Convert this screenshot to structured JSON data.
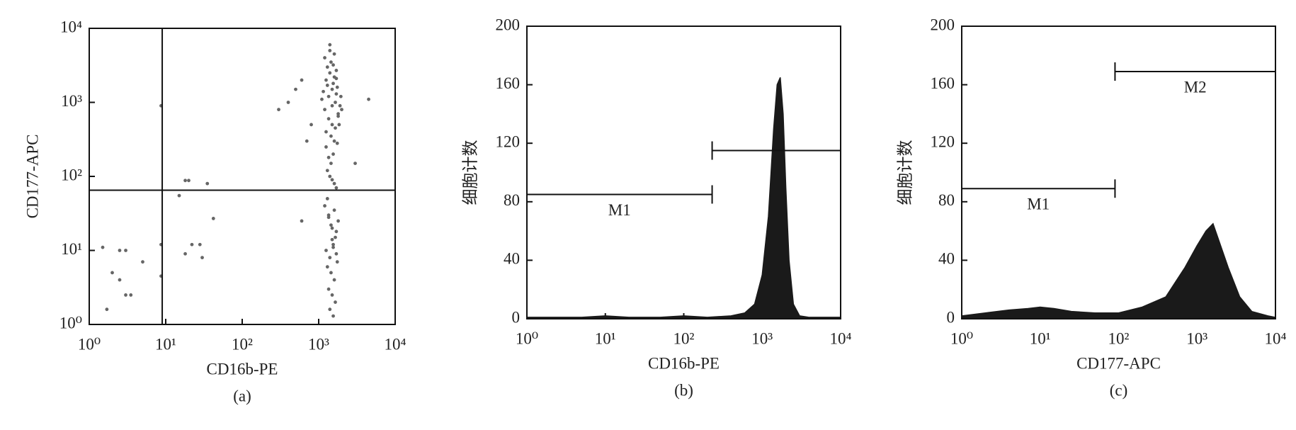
{
  "chart_data": [
    {
      "type": "scatter",
      "caption": "(a)",
      "x_label": "CD16b-PE",
      "y_label": "CD177-APC",
      "color": "#666666",
      "xlog": true,
      "ylog": true,
      "xlim": [
        1,
        10000
      ],
      "ylim": [
        1,
        10000
      ],
      "xticks": [
        {
          "value": 1,
          "label": "10⁰"
        },
        {
          "value": 10,
          "label": "10¹"
        },
        {
          "value": 100,
          "label": "10²"
        },
        {
          "value": 1000,
          "label": "10³"
        },
        {
          "value": 10000,
          "label": "10⁴"
        }
      ],
      "yticks": [
        {
          "value": 1,
          "label": "10⁰"
        },
        {
          "value": 10,
          "label": "10¹"
        },
        {
          "value": 100,
          "label": "10²"
        },
        {
          "value": 1000,
          "label": "10³"
        },
        {
          "value": 10000,
          "label": "10⁴"
        }
      ],
      "quadrant": {
        "x": 9,
        "y": 65
      },
      "x": [
        1200,
        1350,
        1500,
        1650,
        1800,
        1250,
        1400,
        1550,
        1700,
        1900,
        1300,
        1450,
        1600,
        1750,
        1100,
        1350,
        1500,
        1650,
        1800,
        2000,
        1200,
        1400,
        1550,
        1700,
        1250,
        1450,
        1600,
        1850,
        1150,
        1300,
        1500,
        1700,
        1950,
        1400,
        1600,
        1250,
        1550,
        1750,
        1350,
        1450,
        1300,
        1500,
        1700,
        1400,
        1600,
        1200,
        1350,
        1500,
        1650,
        1800,
        1250,
        1400,
        1550,
        1700,
        1300,
        1450,
        1600,
        1750,
        1350,
        1500,
        1650,
        1400,
        1550,
        1300,
        1600,
        1450,
        1700,
        1500,
        1350,
        1550,
        1.5,
        2.5,
        3,
        2,
        2.5,
        3,
        3.5,
        1.7,
        5,
        8.7,
        8.7,
        8.7,
        15,
        18,
        20,
        18,
        22,
        28,
        30,
        35,
        42,
        300,
        400,
        500,
        600,
        700,
        600,
        3000,
        4500,
        800
      ],
      "values": [
        800,
        1200,
        1500,
        1000,
        700,
        2000,
        2500,
        1800,
        1300,
        900,
        3000,
        3500,
        2200,
        1600,
        1100,
        600,
        500,
        450,
        650,
        800,
        4000,
        5000,
        3200,
        2700,
        400,
        350,
        300,
        500,
        1400,
        1700,
        900,
        2100,
        1200,
        6000,
        4500,
        250,
        200,
        280,
        180,
        150,
        120,
        90,
        70,
        100,
        80,
        40,
        30,
        20,
        15,
        25,
        10,
        8,
        12,
        18,
        6,
        5,
        4,
        7,
        3,
        2.5,
        2,
        1.6,
        1.3,
        50,
        35,
        22,
        9,
        14,
        28,
        11,
        11,
        10,
        10,
        5,
        4,
        2.5,
        2.5,
        1.6,
        7,
        900,
        12,
        4.5,
        55,
        88,
        88,
        9,
        12,
        12,
        8,
        80,
        27,
        800,
        1000,
        1500,
        2000,
        300,
        25,
        150,
        1100,
        500
      ]
    },
    {
      "type": "histogram",
      "caption": "(b)",
      "x_label": "CD16b-PE",
      "y_label": "细胞计数",
      "color": "#1a1a1a",
      "xlog": true,
      "xlim": [
        1,
        10000
      ],
      "ylim": [
        0,
        200
      ],
      "xticks": [
        {
          "value": 1,
          "label": "10⁰"
        },
        {
          "value": 10,
          "label": "10¹"
        },
        {
          "value": 100,
          "label": "10²"
        },
        {
          "value": 1000,
          "label": "10³"
        },
        {
          "value": 10000,
          "label": "10⁴"
        }
      ],
      "yticks": [
        0,
        40,
        80,
        120,
        160,
        200
      ],
      "markers": [
        {
          "label": "M1",
          "x": [
            1,
            230
          ],
          "y": 85
        },
        {
          "x": [
            230,
            10000
          ],
          "y": 115
        }
      ],
      "x": [
        1,
        2,
        5,
        10,
        20,
        50,
        100,
        200,
        400,
        600,
        800,
        1000,
        1200,
        1400,
        1550,
        1700,
        1850,
        2000,
        2200,
        2500,
        3000,
        4000,
        6000,
        10000
      ],
      "values": [
        1,
        1,
        1,
        2,
        1,
        1,
        2,
        1,
        2,
        4,
        10,
        30,
        70,
        130,
        160,
        165,
        140,
        90,
        40,
        10,
        2,
        1,
        1,
        1
      ]
    },
    {
      "type": "histogram",
      "caption": "(c)",
      "x_label": "CD177-APC",
      "y_label": "细胞计数",
      "color": "#1a1a1a",
      "xlog": true,
      "xlim": [
        1,
        10000
      ],
      "ylim": [
        0,
        200
      ],
      "xticks": [
        {
          "value": 1,
          "label": "10⁰"
        },
        {
          "value": 10,
          "label": "10¹"
        },
        {
          "value": 100,
          "label": "10²"
        },
        {
          "value": 1000,
          "label": "10³"
        },
        {
          "value": 10000,
          "label": "10⁴"
        }
      ],
      "yticks": [
        0,
        40,
        80,
        120,
        160,
        200
      ],
      "markers": [
        {
          "label": "M1",
          "x": [
            1,
            90
          ],
          "y": 89
        },
        {
          "label": "M2",
          "x": [
            90,
            10000
          ],
          "y": 169
        }
      ],
      "x": [
        1,
        2,
        4,
        7,
        10,
        15,
        25,
        50,
        100,
        200,
        400,
        700,
        1000,
        1300,
        1600,
        2000,
        2500,
        3500,
        5000,
        8000,
        10000
      ],
      "values": [
        2,
        4,
        6,
        7,
        8,
        7,
        5,
        4,
        4,
        8,
        15,
        35,
        50,
        60,
        65,
        50,
        35,
        15,
        5,
        2,
        1
      ]
    }
  ]
}
